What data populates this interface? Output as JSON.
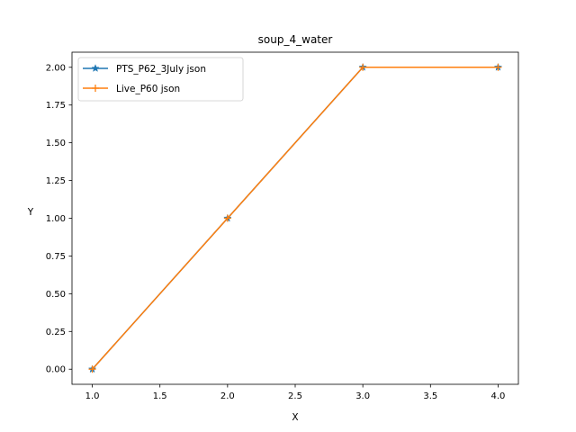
{
  "chart_data": {
    "type": "line",
    "title": "soup_4_water",
    "xlabel": "X",
    "ylabel": "Y",
    "xlim": [
      0.85,
      4.15
    ],
    "ylim": [
      -0.1,
      2.1
    ],
    "xticks": [
      "1.0",
      "1.5",
      "2.0",
      "2.5",
      "3.0",
      "3.5",
      "4.0"
    ],
    "yticks": [
      "0.00",
      "0.25",
      "0.50",
      "0.75",
      "1.00",
      "1.25",
      "1.50",
      "1.75",
      "2.00"
    ],
    "grid": false,
    "legend_position": "top-left",
    "series": [
      {
        "name": "PTS_P62_3July json",
        "color": "#1f77b4",
        "marker": "star",
        "x": [
          1,
          2,
          3,
          4
        ],
        "y": [
          0,
          1,
          2,
          2
        ]
      },
      {
        "name": "Live_P60 json",
        "color": "#ff7f0e",
        "marker": "plus",
        "x": [
          1,
          2,
          3,
          4
        ],
        "y": [
          0,
          1,
          2,
          2
        ]
      }
    ]
  }
}
